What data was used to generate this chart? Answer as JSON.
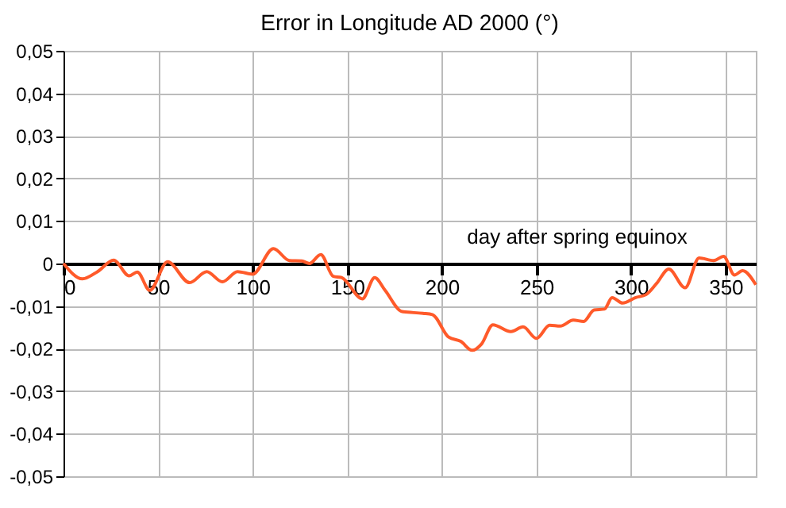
{
  "chart_data": {
    "type": "line",
    "title": "Error in Longitude AD 2000  (°)",
    "xlabel": "day after spring equinox",
    "xlim": [
      0,
      366
    ],
    "xticks": [
      0,
      50,
      100,
      150,
      200,
      250,
      300,
      350
    ],
    "ylim": [
      -0.05,
      0.05
    ],
    "yticks": [
      {
        "value": -0.05,
        "label": "-0,05"
      },
      {
        "value": -0.04,
        "label": "-0,04"
      },
      {
        "value": -0.03,
        "label": "-0,03"
      },
      {
        "value": -0.02,
        "label": "-0,02"
      },
      {
        "value": -0.01,
        "label": "-0,01"
      },
      {
        "value": 0,
        "label": "0"
      },
      {
        "value": 0.01,
        "label": "0,01"
      },
      {
        "value": 0.02,
        "label": "0,02"
      },
      {
        "value": 0.03,
        "label": "0,03"
      },
      {
        "value": 0.04,
        "label": "0,04"
      },
      {
        "value": 0.05,
        "label": "0,05"
      }
    ],
    "grid": true,
    "marker": "none",
    "line_style": "solid",
    "series": [
      {
        "color": "#ff5a2a",
        "x": [
          0,
          10,
          18,
          26.5,
          34.7,
          39,
          45.6,
          55,
          66.7,
          75.7,
          84,
          92,
          100,
          111,
          119.4,
          126,
          130,
          136,
          142.6,
          147,
          158,
          164.5,
          170,
          179,
          190,
          195,
          203.6,
          210,
          216,
          221,
          227,
          236.5,
          243,
          250,
          257,
          262.6,
          269.5,
          275,
          280.5,
          286,
          290,
          295.6,
          302.5,
          308,
          313.5,
          320,
          328.6,
          336,
          343.7,
          349,
          354.7,
          359,
          366
        ],
        "values": [
          0,
          -0.0036,
          -0.0019,
          0.0008,
          -0.0029,
          -0.002,
          -0.0063,
          0.0004,
          -0.0045,
          -0.0019,
          -0.0043,
          -0.0019,
          -0.0025,
          0.0035,
          0.0007,
          0.0006,
          0,
          0.0021,
          -0.003,
          -0.0033,
          -0.0083,
          -0.0033,
          -0.0063,
          -0.0113,
          -0.0117,
          -0.012,
          -0.0173,
          -0.0183,
          -0.0204,
          -0.0189,
          -0.0144,
          -0.016,
          -0.0149,
          -0.0176,
          -0.0145,
          -0.0147,
          -0.0133,
          -0.0136,
          -0.0109,
          -0.0107,
          -0.008,
          -0.0093,
          -0.008,
          -0.0073,
          -0.0047,
          -0.0013,
          -0.0057,
          0.0013,
          0.0007,
          0.0017,
          -0.0027,
          -0.0017,
          -0.005
        ]
      }
    ]
  }
}
